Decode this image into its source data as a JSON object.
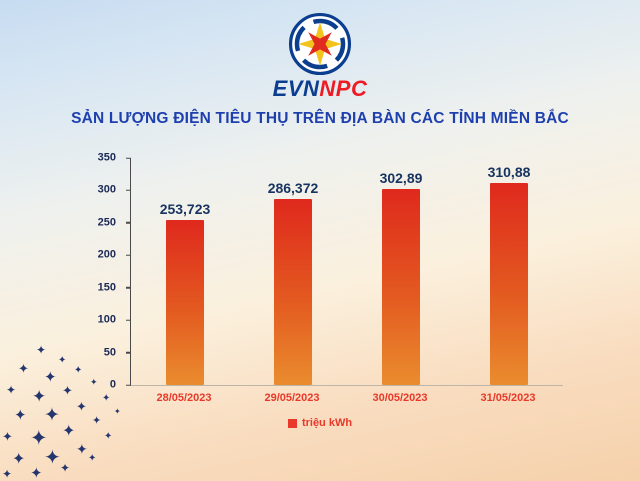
{
  "logo": {
    "evn": "EVN",
    "npc": "NPC"
  },
  "title": "SẢN LƯỢNG ĐIỆN TIÊU THỤ TRÊN ĐỊA BÀN CÁC TỈNH MIỀN BẮC",
  "legend": {
    "label": "triệu kWh",
    "color": "#e8392a"
  },
  "decor": {
    "star_glyph": "✦"
  },
  "colors": {
    "title": "#1e3fae",
    "bar_top": "#df291d",
    "bar_bottom": "#ea8c2e",
    "value_label": "#17335f",
    "x_label": "#e8392a",
    "logo_blue": "#0c3e8f",
    "logo_red": "#ed1c24"
  },
  "chart_data": {
    "type": "bar",
    "title": "SẢN LƯỢNG ĐIỆN TIÊU THỤ TRÊN ĐỊA BÀN CÁC TỈNH MIỀN BẮC",
    "categories": [
      "28/05/2023",
      "29/05/2023",
      "30/05/2023",
      "31/05/2023"
    ],
    "values": [
      253.723,
      286.372,
      302.89,
      310.88
    ],
    "value_labels": [
      "253,723",
      "286,372",
      "302,89",
      "310,88"
    ],
    "xlabel": "",
    "ylabel": "",
    "ylim": [
      0,
      350
    ],
    "yticks": [
      0,
      50,
      100,
      150,
      200,
      250,
      300,
      350
    ],
    "legend": [
      "triệu kWh"
    ],
    "legend_position": "bottom",
    "grid": false,
    "unit": "triệu kWh"
  }
}
